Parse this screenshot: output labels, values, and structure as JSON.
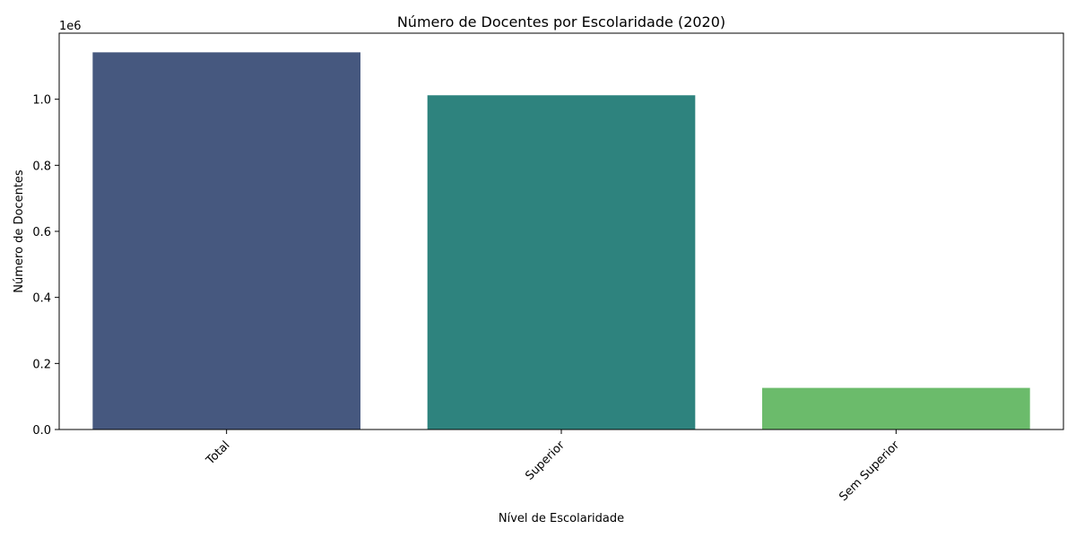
{
  "chart_data": {
    "type": "bar",
    "title": "Número de Docentes por Escolaridade (2020)",
    "xlabel": "Nível de Escolaridade",
    "ylabel": "Número de Docentes",
    "offset_label": "1e6",
    "categories": [
      "Total",
      "Superior",
      "Sem Superior"
    ],
    "values": [
      1142000,
      1012000,
      126000
    ],
    "colors": [
      "#46587f",
      "#2e837e",
      "#6bbb6b"
    ],
    "ylim": [
      0,
      1200000
    ],
    "yticks": [
      0,
      200000,
      400000,
      600000,
      800000,
      1000000
    ],
    "ytick_labels": [
      "0.0",
      "0.2",
      "0.4",
      "0.6",
      "0.8",
      "1.0"
    ],
    "grid": false,
    "legend": "none",
    "xtick_rotation": 45
  }
}
